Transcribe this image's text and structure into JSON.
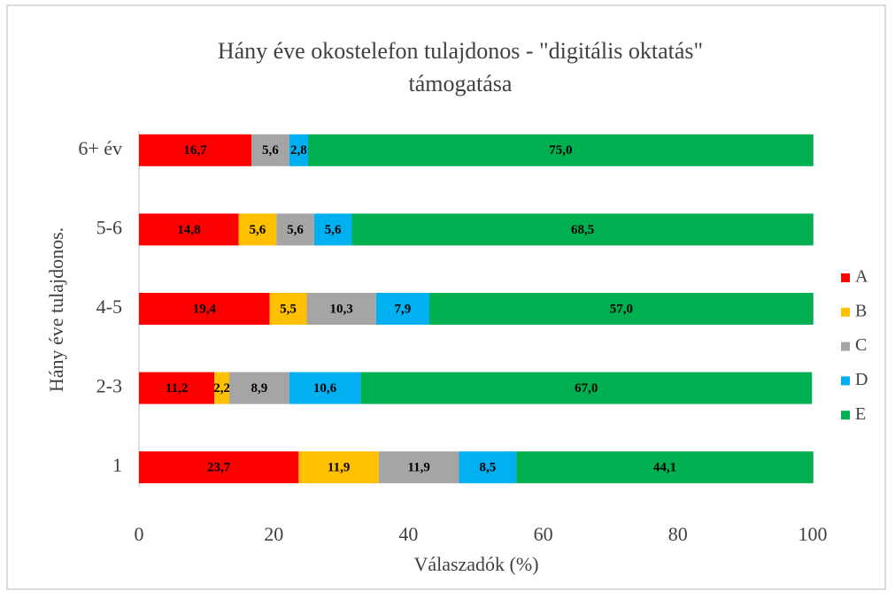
{
  "chart_data": {
    "type": "stacked-barh",
    "title": [
      "Hány éve okostelefon tulajdonos - \"digitális oktatás\"",
      "támogatása"
    ],
    "xlabel": "Válaszadók (%)",
    "ylabel": "Hány éve tulajdonos.",
    "categories": [
      "1",
      "2-3",
      "4-5",
      "5-6",
      "6+ év"
    ],
    "series": [
      {
        "name": "A",
        "color": "#ff0000",
        "values": [
          23.7,
          11.2,
          19.4,
          14.8,
          16.7
        ],
        "value_labels": [
          "23,7",
          "11,2",
          "19,4",
          "14,8",
          "16,7"
        ]
      },
      {
        "name": "B",
        "color": "#ffc000",
        "values": [
          11.9,
          2.2,
          5.5,
          5.6,
          null
        ],
        "value_labels": [
          "11,9",
          "2,2",
          "5,5",
          "5,6",
          null
        ]
      },
      {
        "name": "C",
        "color": "#a5a5a5",
        "values": [
          11.9,
          8.9,
          10.3,
          5.6,
          5.6
        ],
        "value_labels": [
          "11,9",
          "8,9",
          "10,3",
          "5,6",
          "5,6"
        ]
      },
      {
        "name": "D",
        "color": "#00b0f0",
        "values": [
          8.5,
          10.6,
          7.9,
          5.6,
          2.8
        ],
        "value_labels": [
          "8,5",
          "10,6",
          "7,9",
          "5,6",
          "2,8"
        ]
      },
      {
        "name": "E",
        "color": "#00b050",
        "values": [
          44.1,
          67.0,
          57.0,
          68.5,
          75.0
        ],
        "value_labels": [
          "44,1",
          "67,0",
          "57,0",
          "68,5",
          "75,0"
        ]
      }
    ],
    "xlim": [
      0,
      100
    ],
    "xticks": [
      0,
      20,
      40,
      60,
      80,
      100
    ],
    "legend": "right"
  }
}
